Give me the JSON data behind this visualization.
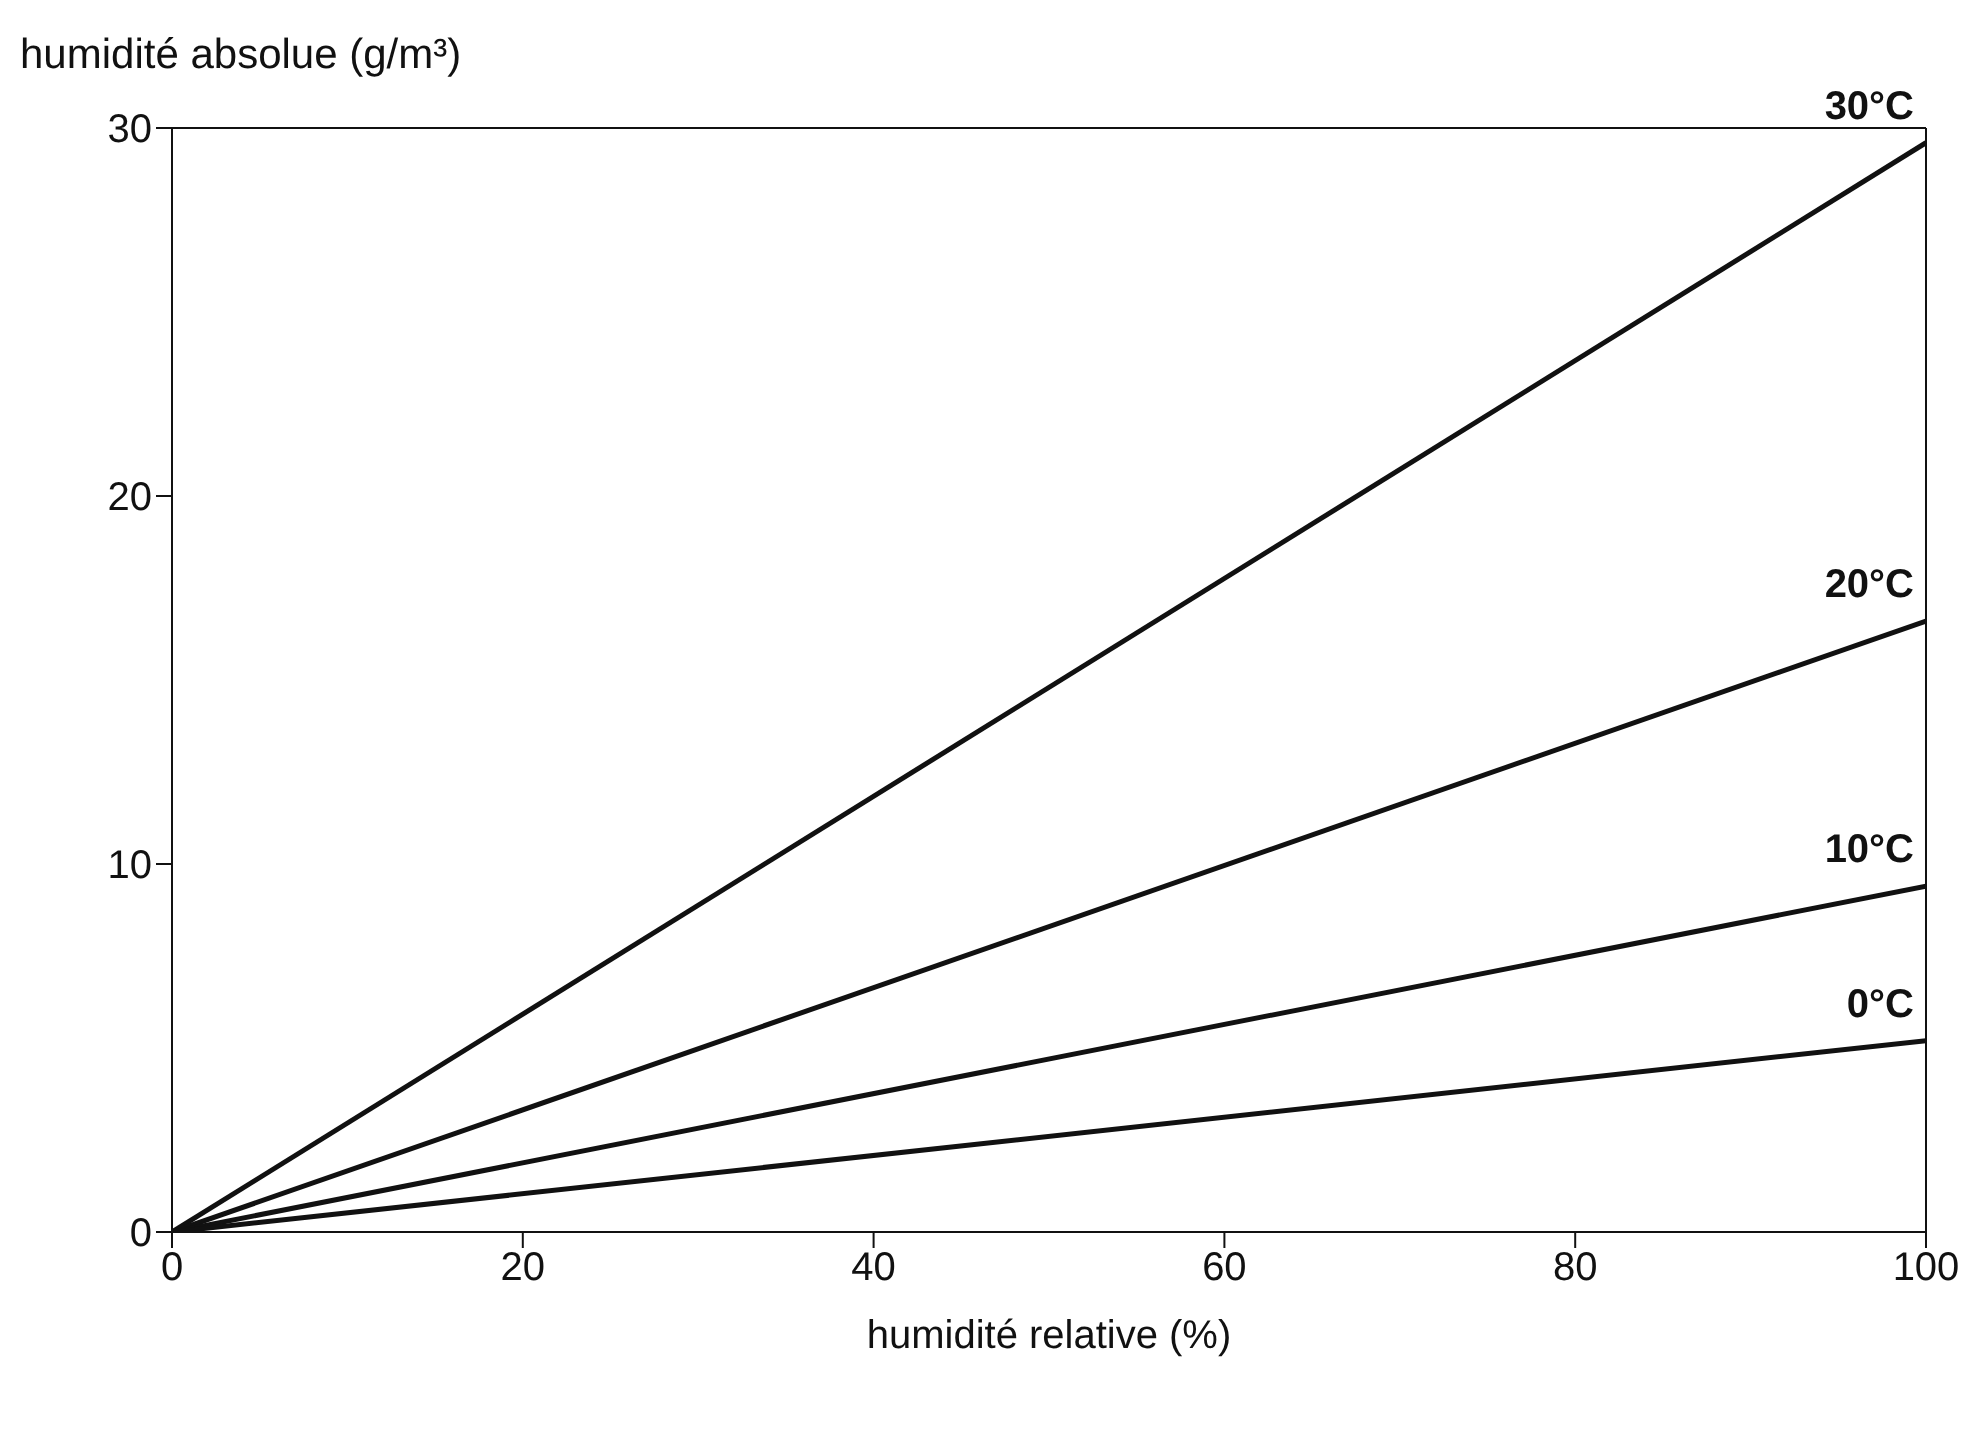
{
  "chart_data": {
    "type": "line",
    "xlabel": "humidité relative (%)",
    "ylabel": "humidité absolue (g/m³)",
    "x": [
      0,
      100
    ],
    "series": [
      {
        "name": "30°C",
        "color": "#111111",
        "values": [
          0,
          29.6
        ]
      },
      {
        "name": "20°C",
        "color": "#111111",
        "values": [
          0,
          16.6
        ]
      },
      {
        "name": "10°C",
        "color": "#111111",
        "values": [
          0,
          9.4
        ]
      },
      {
        "name": "0°C",
        "color": "#111111",
        "values": [
          0,
          5.2
        ]
      }
    ],
    "xlim": [
      0,
      100
    ],
    "xticks": [
      0,
      20,
      40,
      60,
      80,
      100
    ],
    "ylim": [
      0,
      30
    ],
    "yticks": [
      0,
      10,
      20,
      30
    ],
    "marker": "none",
    "line_style": "solid"
  }
}
